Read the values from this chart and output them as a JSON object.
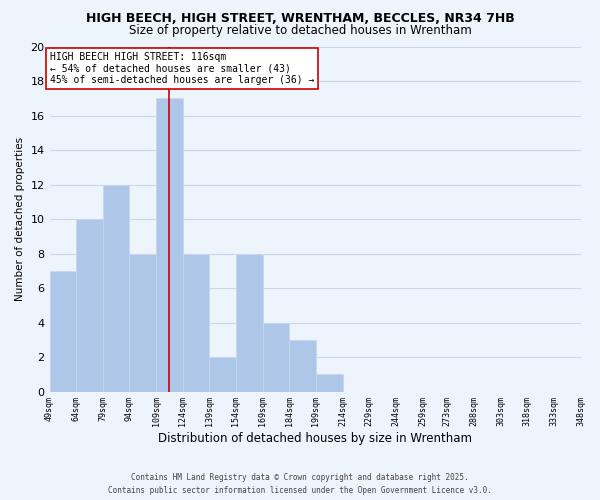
{
  "title_line1": "HIGH BEECH, HIGH STREET, WRENTHAM, BECCLES, NR34 7HB",
  "title_line2": "Size of property relative to detached houses in Wrentham",
  "xlabel": "Distribution of detached houses by size in Wrentham",
  "ylabel": "Number of detached properties",
  "bar_edges": [
    49,
    64,
    79,
    94,
    109,
    124,
    139,
    154,
    169,
    184,
    199,
    214,
    229,
    244,
    259,
    273,
    288,
    303,
    318,
    333,
    348
  ],
  "bar_heights": [
    7,
    10,
    12,
    8,
    17,
    8,
    2,
    8,
    4,
    3,
    1,
    0,
    0,
    0,
    0,
    0,
    0,
    0,
    0,
    0
  ],
  "bar_color": "#aec6e8",
  "bar_edge_color": "#c8d8f0",
  "grid_color": "#c8d8e8",
  "bg_color": "#eef4fb",
  "vline_x": 116,
  "vline_color": "#cc0000",
  "annotation_title": "HIGH BEECH HIGH STREET: 116sqm",
  "annotation_line1": "← 54% of detached houses are smaller (43)",
  "annotation_line2": "45% of semi-detached houses are larger (36) →",
  "annotation_box_color": "#ffffff",
  "annotation_box_edge": "#cc0000",
  "ylim": [
    0,
    20
  ],
  "yticks": [
    0,
    2,
    4,
    6,
    8,
    10,
    12,
    14,
    16,
    18,
    20
  ],
  "xtick_labels": [
    "49sqm",
    "64sqm",
    "79sqm",
    "94sqm",
    "109sqm",
    "124sqm",
    "139sqm",
    "154sqm",
    "169sqm",
    "184sqm",
    "199sqm",
    "214sqm",
    "229sqm",
    "244sqm",
    "259sqm",
    "273sqm",
    "288sqm",
    "303sqm",
    "318sqm",
    "333sqm",
    "348sqm"
  ],
  "footer_line1": "Contains HM Land Registry data © Crown copyright and database right 2025.",
  "footer_line2": "Contains public sector information licensed under the Open Government Licence v3.0."
}
